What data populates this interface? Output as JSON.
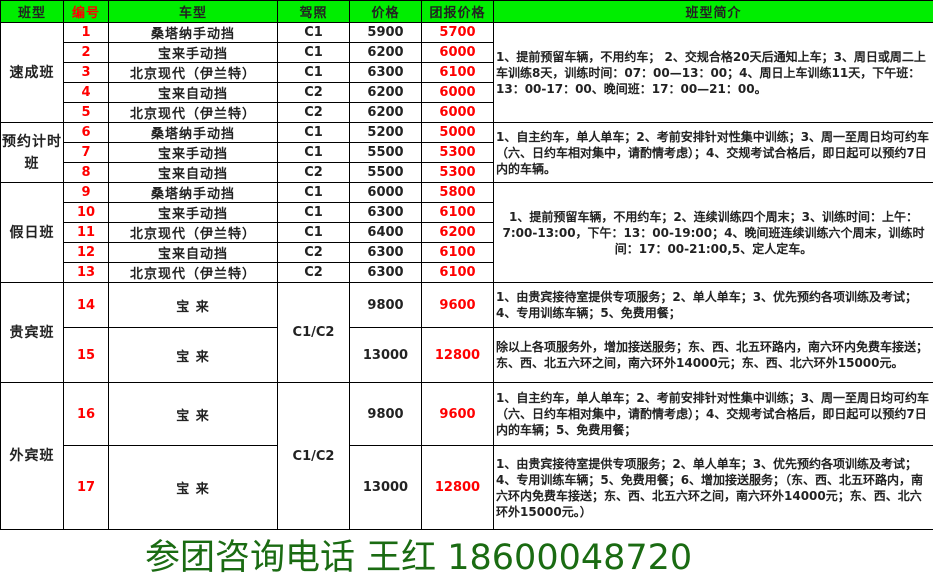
{
  "headers": [
    "班型",
    "编号",
    "车型",
    "驾照",
    "价格",
    "团报价格",
    "班型简介"
  ],
  "colors": {
    "header_bg": "#00ee00",
    "highlight": "#ff0000",
    "watermark": "#1a6b12"
  },
  "watermark": "参团咨询电话 王红 18600048720",
  "groups": [
    {
      "name": "速成班",
      "desc": "1、提前预留车辆，不用约车； 2、交规合格20天后通知上车；3、周日或周二上车训练8天，训练时间：07：00—13：00；4、周日上车训练11天，下午班：13：00-17：00、晚间班：17：00—21：00。",
      "rows": [
        {
          "no": "1",
          "car": "桑塔纳手动挡",
          "license": "C1",
          "price": "5900",
          "group_price": "5700"
        },
        {
          "no": "2",
          "car": "宝来手动挡",
          "license": "C1",
          "price": "6200",
          "group_price": "6000"
        },
        {
          "no": "3",
          "car": "北京现代（伊兰特）",
          "license": "C1",
          "price": "6300",
          "group_price": "6100"
        },
        {
          "no": "4",
          "car": "宝来自动挡",
          "license": "C2",
          "price": "6200",
          "group_price": "6000"
        },
        {
          "no": "5",
          "car": "北京现代（伊兰特）",
          "license": "C2",
          "price": "6200",
          "group_price": "6000"
        }
      ]
    },
    {
      "name": "预约计时班",
      "desc": "1、自主约车，单人单车；2、考前安排针对性集中训练；3、周一至周日均可约车（六、日约车相对集中，请酌情考虑）；4、交规考试合格后，即日起可以预约7日内的车辆。",
      "rows": [
        {
          "no": "6",
          "car": "桑塔纳手动挡",
          "license": "C1",
          "price": "5200",
          "group_price": "5000"
        },
        {
          "no": "7",
          "car": "宝来手动挡",
          "license": "C1",
          "price": "5500",
          "group_price": "5300"
        },
        {
          "no": "8",
          "car": "宝来自动挡",
          "license": "C2",
          "price": "5500",
          "group_price": "5300"
        }
      ]
    },
    {
      "name": "假日班",
      "desc": "1、提前预留车辆，不用约车；2、连续训练四个周末；3、训练时间：上午：7:00-13:00，下午：13：00-19:00；4、晚间班连续训练六个周末，训练时间：17：00-21:00,5、定人定车。",
      "rows": [
        {
          "no": "9",
          "car": "桑塔纳手动挡",
          "license": "C1",
          "price": "6000",
          "group_price": "5800"
        },
        {
          "no": "10",
          "car": "宝来手动挡",
          "license": "C1",
          "price": "6300",
          "group_price": "6100"
        },
        {
          "no": "11",
          "car": "北京现代（伊兰特）",
          "license": "C1",
          "price": "6400",
          "group_price": "6200"
        },
        {
          "no": "12",
          "car": "宝来自动挡",
          "license": "C2",
          "price": "6300",
          "group_price": "6100"
        },
        {
          "no": "13",
          "car": "北京现代（伊兰特）",
          "license": "C2",
          "price": "6300",
          "group_price": "6100"
        }
      ]
    },
    {
      "name": "贵宾班",
      "license": "C1/C2",
      "rows": [
        {
          "no": "14",
          "car": "宝 来",
          "price": "9800",
          "group_price": "9600",
          "desc": "1、由贵宾接待室提供专项服务；2、单人单车；3、优先预约各项训练及考试；4、专用训练车辆；5、免费用餐；"
        },
        {
          "no": "15",
          "car": "宝 来",
          "price": "13000",
          "group_price": "12800",
          "desc": "除以上各项服务外，增加接送服务；东、西、北五环路内，南六环内免费车接送；东、西、北五六环之间，南六环外14000元；东、西、北六环外15000元。"
        }
      ]
    },
    {
      "name": "外宾班",
      "license": "C1/C2",
      "rows": [
        {
          "no": "16",
          "car": "宝 来",
          "price": "9800",
          "group_price": "9600",
          "desc": "1、自主约车，单人单车；2、考前安排针对性集中训练；3、周一至周日均可约车（六、日约车相对集中，请酌情考虑）；4、交规考试合格后，即日起可以预约7日内的车辆；5、免费用餐；"
        },
        {
          "no": "17",
          "car": "宝 来",
          "price": "13000",
          "group_price": "12800",
          "desc": "1、由贵宾接待室提供专项服务；2、单人单车；3、优先预约各项训练及考试；4、专用训练车辆；5、免费用餐；6、增加接送服务；（东、西、北五环路内，南六环内免费车接送；东、西、北五六环之间，南六环外14000元；东、西、北六环外15000元。）"
        }
      ]
    }
  ]
}
